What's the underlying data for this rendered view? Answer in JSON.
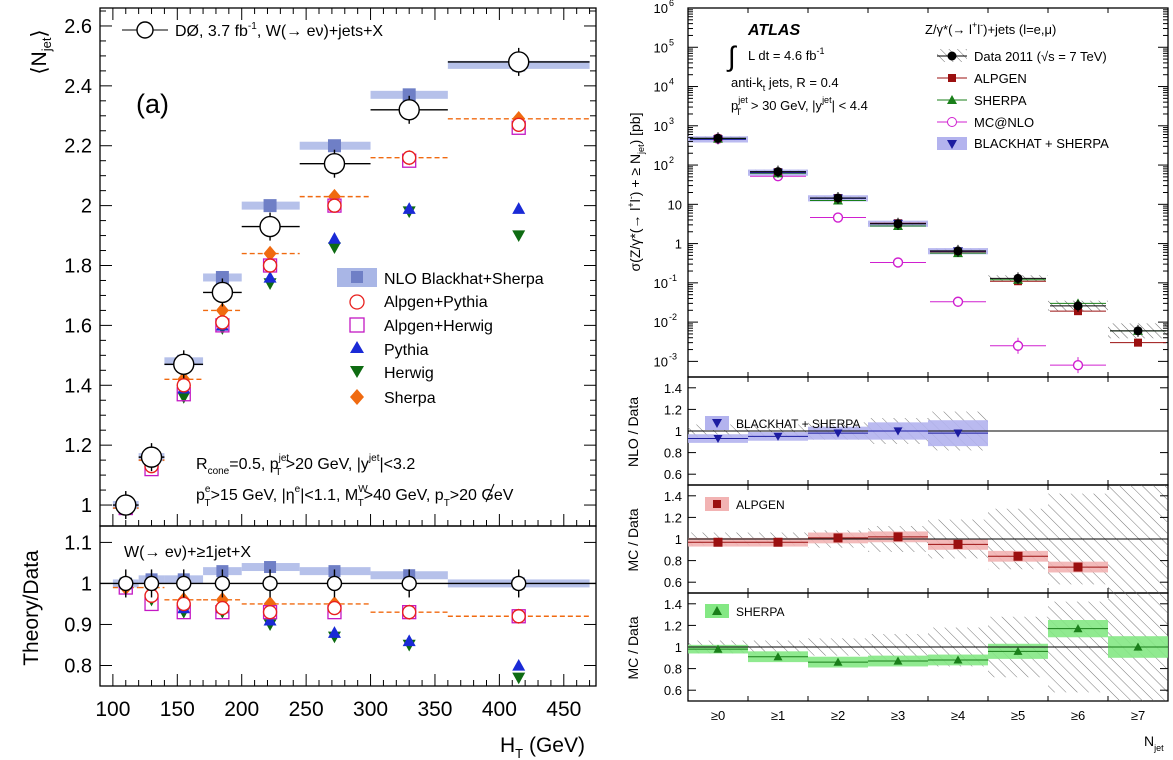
{
  "colors": {
    "nlo": "#6f7fc6",
    "nlo_band": "#a9b6e6",
    "alpgen": "#e8201e",
    "herwig_mc": "#c418c4",
    "pythia": "#1a2ad6",
    "herwig": "#0e6b12",
    "sherpa": "#f06a10",
    "atlas_data": "#000000",
    "atlas_alpgen": "#9b1010",
    "atlas_alpgen_band": "#f2b3b3",
    "atlas_sherpa": "#1a7f1a",
    "atlas_sherpa_band": "#84e884",
    "atlas_mcnlo": "#d020d0",
    "atlas_bh": "#1c1ca0",
    "atlas_bh_band": "#b3b3ee"
  },
  "left": {
    "panel_label": "(a)",
    "ytitle_main": "⟨N",
    "ytitle_sub": "jet",
    "ytitle_end": "⟩",
    "ytitle_ratio": "Theory/Data",
    "xtitle": "H",
    "xtitle_sub": "T",
    "xtitle_end": " (GeV)",
    "xticks": [
      "100",
      "150",
      "200",
      "250",
      "300",
      "350",
      "400",
      "450"
    ],
    "yticks_main": [
      "1",
      "1.2",
      "1.4",
      "1.6",
      "1.8",
      "2",
      "2.2",
      "2.4",
      "2.6"
    ],
    "yticks_ratio": [
      "0.8",
      "0.9",
      "1",
      "1.1"
    ],
    "data_legend": "DØ, 3.7 fb",
    "data_legend_sup": "-1",
    "data_legend_end": ", W(→ eν)+jets+X",
    "ratio_label": "W(→ eν)+≥1jet+X",
    "legend": [
      "NLO Blackhat+Sherpa",
      "Alpgen+Pythia",
      "Alpgen+Herwig",
      "Pythia",
      "Herwig",
      "Sherpa"
    ],
    "cuts_line1": "R",
    "cuts_line1_sub": "cone",
    "cuts_line1_a": "=0.5, p",
    "cuts_line1_b": " >20 GeV, |y",
    "cuts_line1_c": "|<3.2",
    "cuts_jet": "jet",
    "cuts_T": "T",
    "cuts_line2_a": "p",
    "cuts_line2_e": "e",
    "cuts_line2_b": ">15 GeV, |η",
    "cuts_line2_c": "|<1.1, M",
    "cuts_line2_W": "W",
    "cuts_line2_d": ">40 GeV, ",
    "cuts_line2_met": "p",
    "cuts_line2_e2": ">20 GeV"
  },
  "right": {
    "ytitle_main": "σ(Z/γ*(→ l",
    "ytitle_sup1": "+",
    "ytitle_mid": "l",
    "ytitle_sup2": "-",
    "ytitle_end": ") + ≥ N",
    "ytitle_sub": "jet",
    "ytitle_unit": ") [pb]",
    "ratio_titles": [
      "NLO / Data",
      "MC / Data",
      "MC / Data"
    ],
    "xtitle": "N",
    "xtitle_sub": "jet",
    "xticks": [
      "≥0",
      "≥1",
      "≥2",
      "≥3",
      "≥4",
      "≥5",
      "≥6",
      "≥7"
    ],
    "yticks_main": [
      "10",
      "10",
      "10",
      "1",
      "10",
      "10",
      "10",
      "10",
      "10",
      "10"
    ],
    "yticks_main_exp": [
      "-3",
      "-2",
      "-1",
      "",
      "",
      "2",
      "3",
      "4",
      "5",
      "6"
    ],
    "yticks_ratio": [
      "0.6",
      "0.8",
      "1",
      "1.2",
      "1.4"
    ],
    "atlas": "ATLAS",
    "lumi": "L dt = 4.6 fb",
    "lumi_sup": "-1",
    "jets_algo": "anti-k",
    "jets_algo_sub": "t",
    "jets_algo_end": " jets, R = 0.4",
    "jet_cuts_a": "p",
    "jet_cuts_sup": "jet",
    "jet_cuts_sub": "T",
    "jet_cuts_b": " > 30 GeV, |y",
    "jet_cuts_c": "| < 4.4",
    "process": "Z/γ*(→ l",
    "process_sup1": "+",
    "process_mid": "l",
    "process_sup2": "-",
    "process_end": ")+jets (l=e,μ)",
    "legend": [
      "Data 2011 (√s = 7 TeV)",
      "ALPGEN",
      "SHERPA",
      "MC@NLO",
      "BLACKHAT + SHERPA"
    ],
    "ratio_legends": [
      "BLACKHAT + SHERPA",
      "ALPGEN",
      "SHERPA"
    ]
  },
  "chart_data": [
    {
      "type": "scatter",
      "title": "",
      "xlabel": "H_T (GeV)",
      "ylabel": "⟨N_jet⟩",
      "xlim": [
        90,
        475
      ],
      "ylim": [
        0.93,
        2.66
      ],
      "bin_edges": [
        100,
        120,
        140,
        170,
        200,
        245,
        300,
        360,
        470
      ],
      "x": [
        110,
        130,
        155,
        185,
        222,
        272,
        330,
        415
      ],
      "series": [
        {
          "name": "DØ, 3.7 fb-1, W(→ eν)+jets+X",
          "values": [
            1.0,
            1.16,
            1.47,
            1.71,
            1.93,
            2.14,
            2.32,
            2.48
          ]
        },
        {
          "name": "NLO Blackhat+Sherpa",
          "values": [
            1.0,
            1.16,
            1.48,
            1.76,
            2.0,
            2.2,
            2.37,
            2.47
          ]
        },
        {
          "name": "Alpgen+Pythia",
          "values": [
            0.99,
            1.13,
            1.4,
            1.61,
            1.8,
            2.0,
            2.16,
            2.27
          ]
        },
        {
          "name": "Alpgen+Herwig",
          "values": [
            0.99,
            1.12,
            1.37,
            1.6,
            1.8,
            2.0,
            2.15,
            2.26
          ]
        },
        {
          "name": "Pythia",
          "values": [
            1.0,
            1.15,
            1.39,
            1.6,
            1.76,
            1.89,
            1.99,
            1.99
          ]
        },
        {
          "name": "Herwig",
          "values": [
            1.0,
            1.15,
            1.36,
            1.59,
            1.74,
            1.86,
            1.98,
            1.9
          ]
        },
        {
          "name": "Sherpa",
          "values": [
            0.99,
            1.15,
            1.42,
            1.65,
            1.84,
            2.03,
            2.16,
            2.29
          ]
        }
      ]
    },
    {
      "type": "scatter",
      "title": "W(→ eν)+≥1jet+X",
      "xlabel": "H_T (GeV)",
      "ylabel": "Theory/Data",
      "xlim": [
        90,
        475
      ],
      "ylim": [
        0.75,
        1.14
      ],
      "x": [
        110,
        130,
        155,
        185,
        222,
        272,
        330,
        415
      ],
      "series": [
        {
          "name": "Data",
          "values": [
            1,
            1,
            1,
            1,
            1,
            1,
            1,
            1
          ]
        },
        {
          "name": "NLO Blackhat+Sherpa",
          "values": [
            1.0,
            1.01,
            1.01,
            1.03,
            1.04,
            1.03,
            1.02,
            1.0
          ]
        },
        {
          "name": "Alpgen+Pythia",
          "values": [
            1.0,
            0.97,
            0.95,
            0.94,
            0.93,
            0.94,
            0.93,
            0.92
          ]
        },
        {
          "name": "Alpgen+Herwig",
          "values": [
            0.99,
            0.95,
            0.93,
            0.93,
            0.93,
            0.93,
            0.93,
            0.92
          ]
        },
        {
          "name": "Pythia",
          "values": [
            1.0,
            0.98,
            0.94,
            0.94,
            0.91,
            0.88,
            0.86,
            0.8
          ]
        },
        {
          "name": "Herwig",
          "values": [
            1.0,
            0.96,
            0.93,
            0.93,
            0.9,
            0.87,
            0.85,
            0.77
          ]
        },
        {
          "name": "Sherpa",
          "values": [
            0.99,
            0.99,
            0.96,
            0.96,
            0.95,
            0.95,
            0.93,
            0.92
          ]
        }
      ]
    },
    {
      "type": "scatter",
      "title": "",
      "xlabel": "N_jet",
      "ylabel": "σ(Z/γ*(→ l+l-) + ≥ N_jet) [pb]",
      "log_y": true,
      "ylim": [
        0.0004,
        1000000
      ],
      "categories": [
        "≥0",
        "≥1",
        "≥2",
        "≥3",
        "≥4",
        "≥5",
        "≥6",
        "≥7"
      ],
      "series": [
        {
          "name": "Data 2011 (√s = 7 TeV)",
          "values": [
            480,
            68,
            14.5,
            3.2,
            0.65,
            0.13,
            0.026,
            0.006
          ]
        },
        {
          "name": "ALPGEN",
          "values": [
            470,
            66,
            14.5,
            3.3,
            0.62,
            0.11,
            0.019,
            0.003
          ]
        },
        {
          "name": "SHERPA",
          "values": [
            470,
            62,
            12.5,
            2.8,
            0.57,
            0.12,
            0.03,
            0.006
          ]
        },
        {
          "name": "MC@NLO",
          "values": [
            470,
            52,
            4.6,
            0.33,
            0.033,
            0.0025,
            0.0008,
            null
          ]
        },
        {
          "name": "BLACKHAT + SHERPA",
          "values": [
            450,
            64,
            14.2,
            3.2,
            0.64,
            null,
            null,
            null
          ]
        }
      ]
    },
    {
      "type": "scatter",
      "title": "",
      "ylabel": "NLO / Data",
      "ylim": [
        0.5,
        1.5
      ],
      "categories": [
        "≥0",
        "≥1",
        "≥2",
        "≥3",
        "≥4"
      ],
      "series": [
        {
          "name": "BLACKHAT + SHERPA",
          "values": [
            0.93,
            0.95,
            0.98,
            1.0,
            0.98
          ]
        }
      ]
    },
    {
      "type": "scatter",
      "title": "",
      "ylabel": "MC / Data",
      "ylim": [
        0.5,
        1.5
      ],
      "categories": [
        "≥0",
        "≥1",
        "≥2",
        "≥3",
        "≥4",
        "≥5",
        "≥6"
      ],
      "series": [
        {
          "name": "ALPGEN",
          "values": [
            0.97,
            0.97,
            1.01,
            1.02,
            0.95,
            0.84,
            0.74
          ]
        }
      ]
    },
    {
      "type": "scatter",
      "title": "",
      "ylabel": "MC / Data",
      "ylim": [
        0.5,
        1.5
      ],
      "categories": [
        "≥0",
        "≥1",
        "≥2",
        "≥3",
        "≥4",
        "≥5",
        "≥6",
        "≥7"
      ],
      "series": [
        {
          "name": "SHERPA",
          "values": [
            0.98,
            0.91,
            0.86,
            0.87,
            0.88,
            0.96,
            1.17,
            1.0
          ]
        }
      ]
    }
  ]
}
